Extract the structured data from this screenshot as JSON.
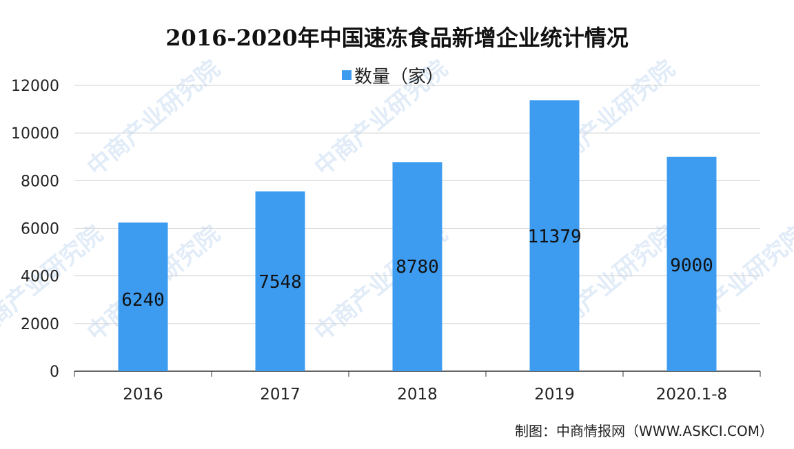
{
  "chart_data": {
    "type": "bar",
    "title": "2016-2020年中国速冻食品新增企业统计情况",
    "categories": [
      "2016",
      "2017",
      "2018",
      "2019",
      "2020.1-8"
    ],
    "series": [
      {
        "name": "数量（家）",
        "values": [
          6240,
          7548,
          8780,
          11379,
          9000
        ],
        "color": "#3d9cf0"
      }
    ],
    "data_labels": [
      "6240",
      "7548",
      "8780",
      "11379",
      "9000"
    ],
    "y_ticks": [
      "0",
      "2000",
      "4000",
      "6000",
      "8000",
      "10000",
      "12000"
    ],
    "ylim": [
      0,
      12000
    ],
    "grid": true,
    "legend": "top-center"
  },
  "source": "制图：中商情报网（WWW.ASKCI.COM）",
  "watermark": "中商产业研究院"
}
